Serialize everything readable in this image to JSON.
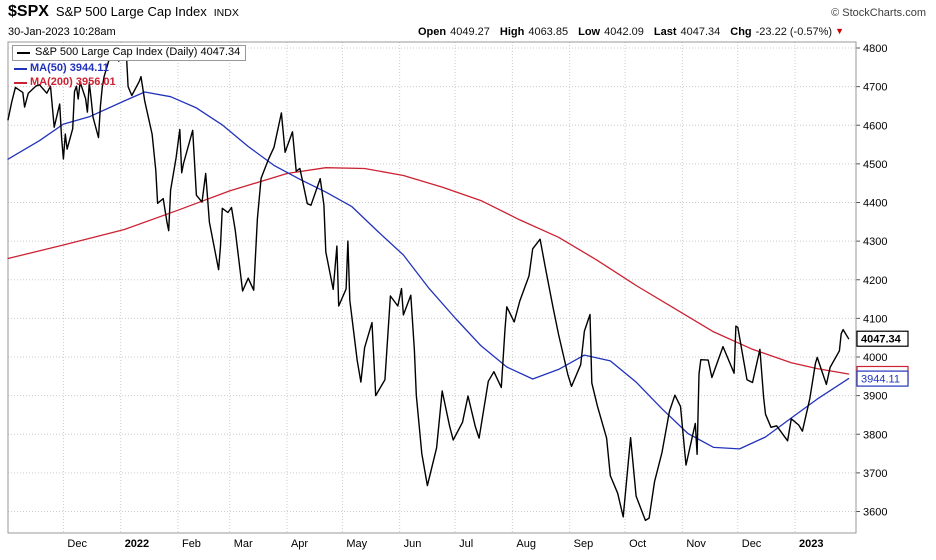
{
  "header": {
    "symbol": "$SPX",
    "name": "S&P 500 Large Cap Index",
    "exchange": "INDX",
    "brand": "© StockCharts.com",
    "datetime": "30-Jan-2023 10:28am",
    "quote": {
      "fields": [
        {
          "label": "Open",
          "value": "4049.27"
        },
        {
          "label": "High",
          "value": "4063.85"
        },
        {
          "label": "Low",
          "value": "4042.09"
        },
        {
          "label": "Last",
          "value": "4047.34"
        },
        {
          "label": "Chg",
          "value": "-23.22 (-0.57%)"
        }
      ],
      "direction_icon": "▼",
      "direction": "down"
    }
  },
  "legend": {
    "main": "S&P 500 Large Cap Index (Daily) 4047.34",
    "ma50": "MA(50) 3944.11",
    "ma200": "MA(200) 3956.01"
  },
  "colors": {
    "price": "#000000",
    "ma50": "#2233bb",
    "ma200": "#cc2233",
    "grid": "#cccccc",
    "border": "#999999",
    "change_down": "#cc0000",
    "axis_text": "#000000"
  },
  "chart_data": {
    "type": "line",
    "title": "S&P 500 Large Cap Index (Daily)",
    "symbol": "$SPX",
    "timeframe": "Daily",
    "last": 4047.34,
    "ma50_last": 3944.11,
    "ma200_last": 3956.01,
    "grid": true,
    "legend_position": "top-left",
    "x_range": {
      "start": "2021-11-01",
      "end": "2023-02-03"
    },
    "y_axis": {
      "side": "right",
      "min": 3600,
      "max": 4800,
      "step": 100,
      "ticks": [
        4800,
        4700,
        4600,
        4500,
        4400,
        4300,
        4200,
        4100,
        4000,
        3900,
        3800,
        3700,
        3600
      ]
    },
    "x_ticks": [
      {
        "label": "Dec",
        "date": "2021-12-01",
        "bold": false
      },
      {
        "label": "2022",
        "date": "2022-01-01",
        "bold": true
      },
      {
        "label": "Feb",
        "date": "2022-02-01",
        "bold": false
      },
      {
        "label": "Mar",
        "date": "2022-03-01",
        "bold": false
      },
      {
        "label": "Apr",
        "date": "2022-04-01",
        "bold": false
      },
      {
        "label": "May",
        "date": "2022-05-01",
        "bold": false
      },
      {
        "label": "Jun",
        "date": "2022-06-01",
        "bold": false
      },
      {
        "label": "Jul",
        "date": "2022-07-01",
        "bold": false
      },
      {
        "label": "Aug",
        "date": "2022-08-01",
        "bold": false
      },
      {
        "label": "Sep",
        "date": "2022-09-01",
        "bold": false
      },
      {
        "label": "Oct",
        "date": "2022-10-01",
        "bold": false
      },
      {
        "label": "Nov",
        "date": "2022-11-01",
        "bold": false
      },
      {
        "label": "Dec",
        "date": "2022-12-01",
        "bold": false
      },
      {
        "label": "2023",
        "date": "2023-01-01",
        "bold": true
      }
    ],
    "series": [
      {
        "name": "MA(200)",
        "color_key": "ma200",
        "width": 1.3,
        "points": [
          [
            "2021-11-01",
            4255
          ],
          [
            "2021-12-01",
            4290
          ],
          [
            "2022-01-03",
            4330
          ],
          [
            "2022-02-01",
            4380
          ],
          [
            "2022-03-01",
            4430
          ],
          [
            "2022-04-01",
            4475
          ],
          [
            "2022-04-22",
            4490
          ],
          [
            "2022-05-13",
            4488
          ],
          [
            "2022-06-03",
            4470
          ],
          [
            "2022-06-24",
            4440
          ],
          [
            "2022-07-15",
            4405
          ],
          [
            "2022-08-05",
            4355
          ],
          [
            "2022-08-26",
            4310
          ],
          [
            "2022-09-16",
            4250
          ],
          [
            "2022-10-07",
            4185
          ],
          [
            "2022-10-28",
            4125
          ],
          [
            "2022-11-18",
            4065
          ],
          [
            "2022-12-09",
            4020
          ],
          [
            "2022-12-30",
            3985
          ],
          [
            "2023-01-13",
            3970
          ],
          [
            "2023-01-30",
            3956.01
          ]
        ]
      },
      {
        "name": "MA(50)",
        "color_key": "ma50",
        "width": 1.3,
        "points": [
          [
            "2021-11-01",
            4512
          ],
          [
            "2021-11-18",
            4560
          ],
          [
            "2021-12-01",
            4603
          ],
          [
            "2021-12-15",
            4622
          ],
          [
            "2022-01-03",
            4663
          ],
          [
            "2022-01-14",
            4686
          ],
          [
            "2022-01-28",
            4674
          ],
          [
            "2022-02-11",
            4645
          ],
          [
            "2022-02-25",
            4601
          ],
          [
            "2022-03-11",
            4545
          ],
          [
            "2022-03-25",
            4496
          ],
          [
            "2022-04-08",
            4460
          ],
          [
            "2022-04-22",
            4427
          ],
          [
            "2022-05-06",
            4390
          ],
          [
            "2022-05-20",
            4326
          ],
          [
            "2022-06-03",
            4264
          ],
          [
            "2022-06-17",
            4177
          ],
          [
            "2022-07-01",
            4101
          ],
          [
            "2022-07-15",
            4029
          ],
          [
            "2022-07-29",
            3974
          ],
          [
            "2022-08-12",
            3943
          ],
          [
            "2022-08-26",
            3968
          ],
          [
            "2022-09-09",
            4005
          ],
          [
            "2022-09-23",
            3990
          ],
          [
            "2022-10-07",
            3935
          ],
          [
            "2022-10-21",
            3866
          ],
          [
            "2022-11-04",
            3802
          ],
          [
            "2022-11-18",
            3766
          ],
          [
            "2022-12-02",
            3762
          ],
          [
            "2022-12-16",
            3793
          ],
          [
            "2022-12-30",
            3842
          ],
          [
            "2023-01-13",
            3891
          ],
          [
            "2023-01-30",
            3944.11
          ]
        ]
      },
      {
        "name": "S&P 500 Large Cap Index Close",
        "color_key": "price",
        "width": 1.4,
        "points": [
          [
            "2021-11-01",
            4614
          ],
          [
            "2021-11-03",
            4660
          ],
          [
            "2021-11-05",
            4698
          ],
          [
            "2021-11-09",
            4685
          ],
          [
            "2021-11-10",
            4647
          ],
          [
            "2021-11-12",
            4683
          ],
          [
            "2021-11-16",
            4701
          ],
          [
            "2021-11-18",
            4705
          ],
          [
            "2021-11-22",
            4683
          ],
          [
            "2021-11-24",
            4701
          ],
          [
            "2021-11-26",
            4595
          ],
          [
            "2021-11-29",
            4655
          ],
          [
            "2021-11-30",
            4567
          ],
          [
            "2021-12-01",
            4513
          ],
          [
            "2021-12-02",
            4577
          ],
          [
            "2021-12-03",
            4538
          ],
          [
            "2021-12-06",
            4591
          ],
          [
            "2021-12-07",
            4687
          ],
          [
            "2021-12-08",
            4701
          ],
          [
            "2021-12-09",
            4668
          ],
          [
            "2021-12-10",
            4712
          ],
          [
            "2021-12-13",
            4669
          ],
          [
            "2021-12-14",
            4634
          ],
          [
            "2021-12-15",
            4710
          ],
          [
            "2021-12-16",
            4669
          ],
          [
            "2021-12-17",
            4621
          ],
          [
            "2021-12-20",
            4568
          ],
          [
            "2021-12-21",
            4649
          ],
          [
            "2021-12-22",
            4697
          ],
          [
            "2021-12-23",
            4726
          ],
          [
            "2021-12-27",
            4791
          ],
          [
            "2021-12-29",
            4793
          ],
          [
            "2021-12-31",
            4766
          ],
          [
            "2022-01-03",
            4797
          ],
          [
            "2022-01-04",
            4793
          ],
          [
            "2022-01-05",
            4700
          ],
          [
            "2022-01-07",
            4677
          ],
          [
            "2022-01-11",
            4713
          ],
          [
            "2022-01-12",
            4726
          ],
          [
            "2022-01-14",
            4663
          ],
          [
            "2022-01-18",
            4577
          ],
          [
            "2022-01-20",
            4483
          ],
          [
            "2022-01-21",
            4398
          ],
          [
            "2022-01-24",
            4410
          ],
          [
            "2022-01-26",
            4350
          ],
          [
            "2022-01-27",
            4327
          ],
          [
            "2022-01-28",
            4432
          ],
          [
            "2022-01-31",
            4516
          ],
          [
            "2022-02-02",
            4589
          ],
          [
            "2022-02-03",
            4477
          ],
          [
            "2022-02-04",
            4501
          ],
          [
            "2022-02-09",
            4587
          ],
          [
            "2022-02-11",
            4419
          ],
          [
            "2022-02-14",
            4401
          ],
          [
            "2022-02-16",
            4475
          ],
          [
            "2022-02-18",
            4349
          ],
          [
            "2022-02-23",
            4226
          ],
          [
            "2022-02-24",
            4288
          ],
          [
            "2022-02-25",
            4385
          ],
          [
            "2022-02-28",
            4374
          ],
          [
            "2022-03-02",
            4387
          ],
          [
            "2022-03-04",
            4329
          ],
          [
            "2022-03-08",
            4171
          ],
          [
            "2022-03-11",
            4204
          ],
          [
            "2022-03-14",
            4173
          ],
          [
            "2022-03-16",
            4358
          ],
          [
            "2022-03-18",
            4463
          ],
          [
            "2022-03-22",
            4512
          ],
          [
            "2022-03-25",
            4543
          ],
          [
            "2022-03-29",
            4632
          ],
          [
            "2022-03-31",
            4530
          ],
          [
            "2022-04-04",
            4583
          ],
          [
            "2022-04-06",
            4481
          ],
          [
            "2022-04-08",
            4488
          ],
          [
            "2022-04-12",
            4397
          ],
          [
            "2022-04-14",
            4393
          ],
          [
            "2022-04-19",
            4462
          ],
          [
            "2022-04-21",
            4394
          ],
          [
            "2022-04-22",
            4272
          ],
          [
            "2022-04-26",
            4175
          ],
          [
            "2022-04-28",
            4287
          ],
          [
            "2022-04-29",
            4132
          ],
          [
            "2022-05-03",
            4176
          ],
          [
            "2022-05-04",
            4300
          ],
          [
            "2022-05-05",
            4147
          ],
          [
            "2022-05-09",
            3991
          ],
          [
            "2022-05-11",
            3935
          ],
          [
            "2022-05-13",
            4024
          ],
          [
            "2022-05-17",
            4089
          ],
          [
            "2022-05-19",
            3900
          ],
          [
            "2022-05-24",
            3941
          ],
          [
            "2022-05-27",
            4158
          ],
          [
            "2022-05-31",
            4132
          ],
          [
            "2022-06-02",
            4177
          ],
          [
            "2022-06-03",
            4109
          ],
          [
            "2022-06-07",
            4160
          ],
          [
            "2022-06-09",
            4017
          ],
          [
            "2022-06-10",
            3901
          ],
          [
            "2022-06-13",
            3750
          ],
          [
            "2022-06-16",
            3667
          ],
          [
            "2022-06-21",
            3765
          ],
          [
            "2022-06-24",
            3912
          ],
          [
            "2022-06-28",
            3821
          ],
          [
            "2022-06-30",
            3785
          ],
          [
            "2022-07-05",
            3831
          ],
          [
            "2022-07-08",
            3899
          ],
          [
            "2022-07-12",
            3819
          ],
          [
            "2022-07-14",
            3790
          ],
          [
            "2022-07-19",
            3937
          ],
          [
            "2022-07-22",
            3962
          ],
          [
            "2022-07-26",
            3921
          ],
          [
            "2022-07-28",
            4072
          ],
          [
            "2022-07-29",
            4130
          ],
          [
            "2022-08-02",
            4091
          ],
          [
            "2022-08-05",
            4145
          ],
          [
            "2022-08-10",
            4210
          ],
          [
            "2022-08-12",
            4280
          ],
          [
            "2022-08-16",
            4305
          ],
          [
            "2022-08-19",
            4228
          ],
          [
            "2022-08-23",
            4129
          ],
          [
            "2022-08-26",
            4058
          ],
          [
            "2022-08-31",
            3955
          ],
          [
            "2022-09-02",
            3924
          ],
          [
            "2022-09-07",
            3980
          ],
          [
            "2022-09-09",
            4067
          ],
          [
            "2022-09-12",
            4110
          ],
          [
            "2022-09-13",
            3933
          ],
          [
            "2022-09-16",
            3873
          ],
          [
            "2022-09-21",
            3790
          ],
          [
            "2022-09-23",
            3693
          ],
          [
            "2022-09-27",
            3647
          ],
          [
            "2022-09-30",
            3586
          ],
          [
            "2022-10-04",
            3791
          ],
          [
            "2022-10-07",
            3640
          ],
          [
            "2022-10-12",
            3577
          ],
          [
            "2022-10-14",
            3583
          ],
          [
            "2022-10-17",
            3678
          ],
          [
            "2022-10-21",
            3753
          ],
          [
            "2022-10-25",
            3859
          ],
          [
            "2022-10-28",
            3901
          ],
          [
            "2022-10-31",
            3872
          ],
          [
            "2022-11-03",
            3720
          ],
          [
            "2022-11-08",
            3828
          ],
          [
            "2022-11-09",
            3748
          ],
          [
            "2022-11-10",
            3956
          ],
          [
            "2022-11-11",
            3993
          ],
          [
            "2022-11-15",
            3992
          ],
          [
            "2022-11-17",
            3947
          ],
          [
            "2022-11-23",
            4027
          ],
          [
            "2022-11-29",
            3958
          ],
          [
            "2022-11-30",
            4080
          ],
          [
            "2022-12-01",
            4077
          ],
          [
            "2022-12-06",
            3941
          ],
          [
            "2022-12-09",
            3934
          ],
          [
            "2022-12-13",
            4020
          ],
          [
            "2022-12-15",
            3896
          ],
          [
            "2022-12-16",
            3852
          ],
          [
            "2022-12-19",
            3818
          ],
          [
            "2022-12-22",
            3822
          ],
          [
            "2022-12-28",
            3783
          ],
          [
            "2022-12-30",
            3840
          ],
          [
            "2023-01-03",
            3824
          ],
          [
            "2023-01-05",
            3808
          ],
          [
            "2023-01-09",
            3892
          ],
          [
            "2023-01-12",
            3983
          ],
          [
            "2023-01-13",
            3999
          ],
          [
            "2023-01-18",
            3929
          ],
          [
            "2023-01-20",
            3973
          ],
          [
            "2023-01-25",
            4016
          ],
          [
            "2023-01-26",
            4060
          ],
          [
            "2023-01-27",
            4071
          ],
          [
            "2023-01-30",
            4047.34
          ]
        ]
      }
    ],
    "price_tags": [
      {
        "label": "3956.01",
        "value": 3956.01,
        "color_key": "ma200",
        "bold": false
      },
      {
        "label": "3944.11",
        "value": 3944.11,
        "color_key": "ma50",
        "bold": false
      },
      {
        "label": "4047.34",
        "value": 4047.34,
        "color_key": "price",
        "bold": true
      }
    ]
  }
}
